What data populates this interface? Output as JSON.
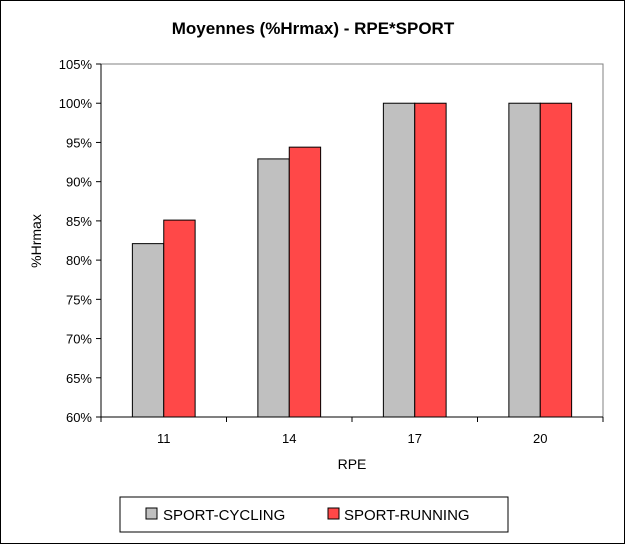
{
  "chart_data": {
    "type": "bar",
    "title": "Moyennes (%Hrmax) - RPE*SPORT",
    "xlabel": "RPE",
    "ylabel": "%Hrmax",
    "categories": [
      "11",
      "14",
      "17",
      "20"
    ],
    "series": [
      {
        "name": "SPORT-CYCLING",
        "color": "#c0c0c0",
        "values": [
          82.1,
          92.9,
          100,
          100
        ]
      },
      {
        "name": "SPORT-RUNNING",
        "color": "#ff4848",
        "values": [
          85.1,
          94.4,
          100,
          100
        ]
      }
    ],
    "ylim": [
      60,
      105
    ],
    "yticks": [
      60,
      65,
      70,
      75,
      80,
      85,
      90,
      95,
      100,
      105
    ],
    "ytick_labels": [
      "60%",
      "65%",
      "70%",
      "75%",
      "80%",
      "85%",
      "90%",
      "95%",
      "100%",
      "105%"
    ],
    "grid": false,
    "legend_position": "bottom"
  }
}
